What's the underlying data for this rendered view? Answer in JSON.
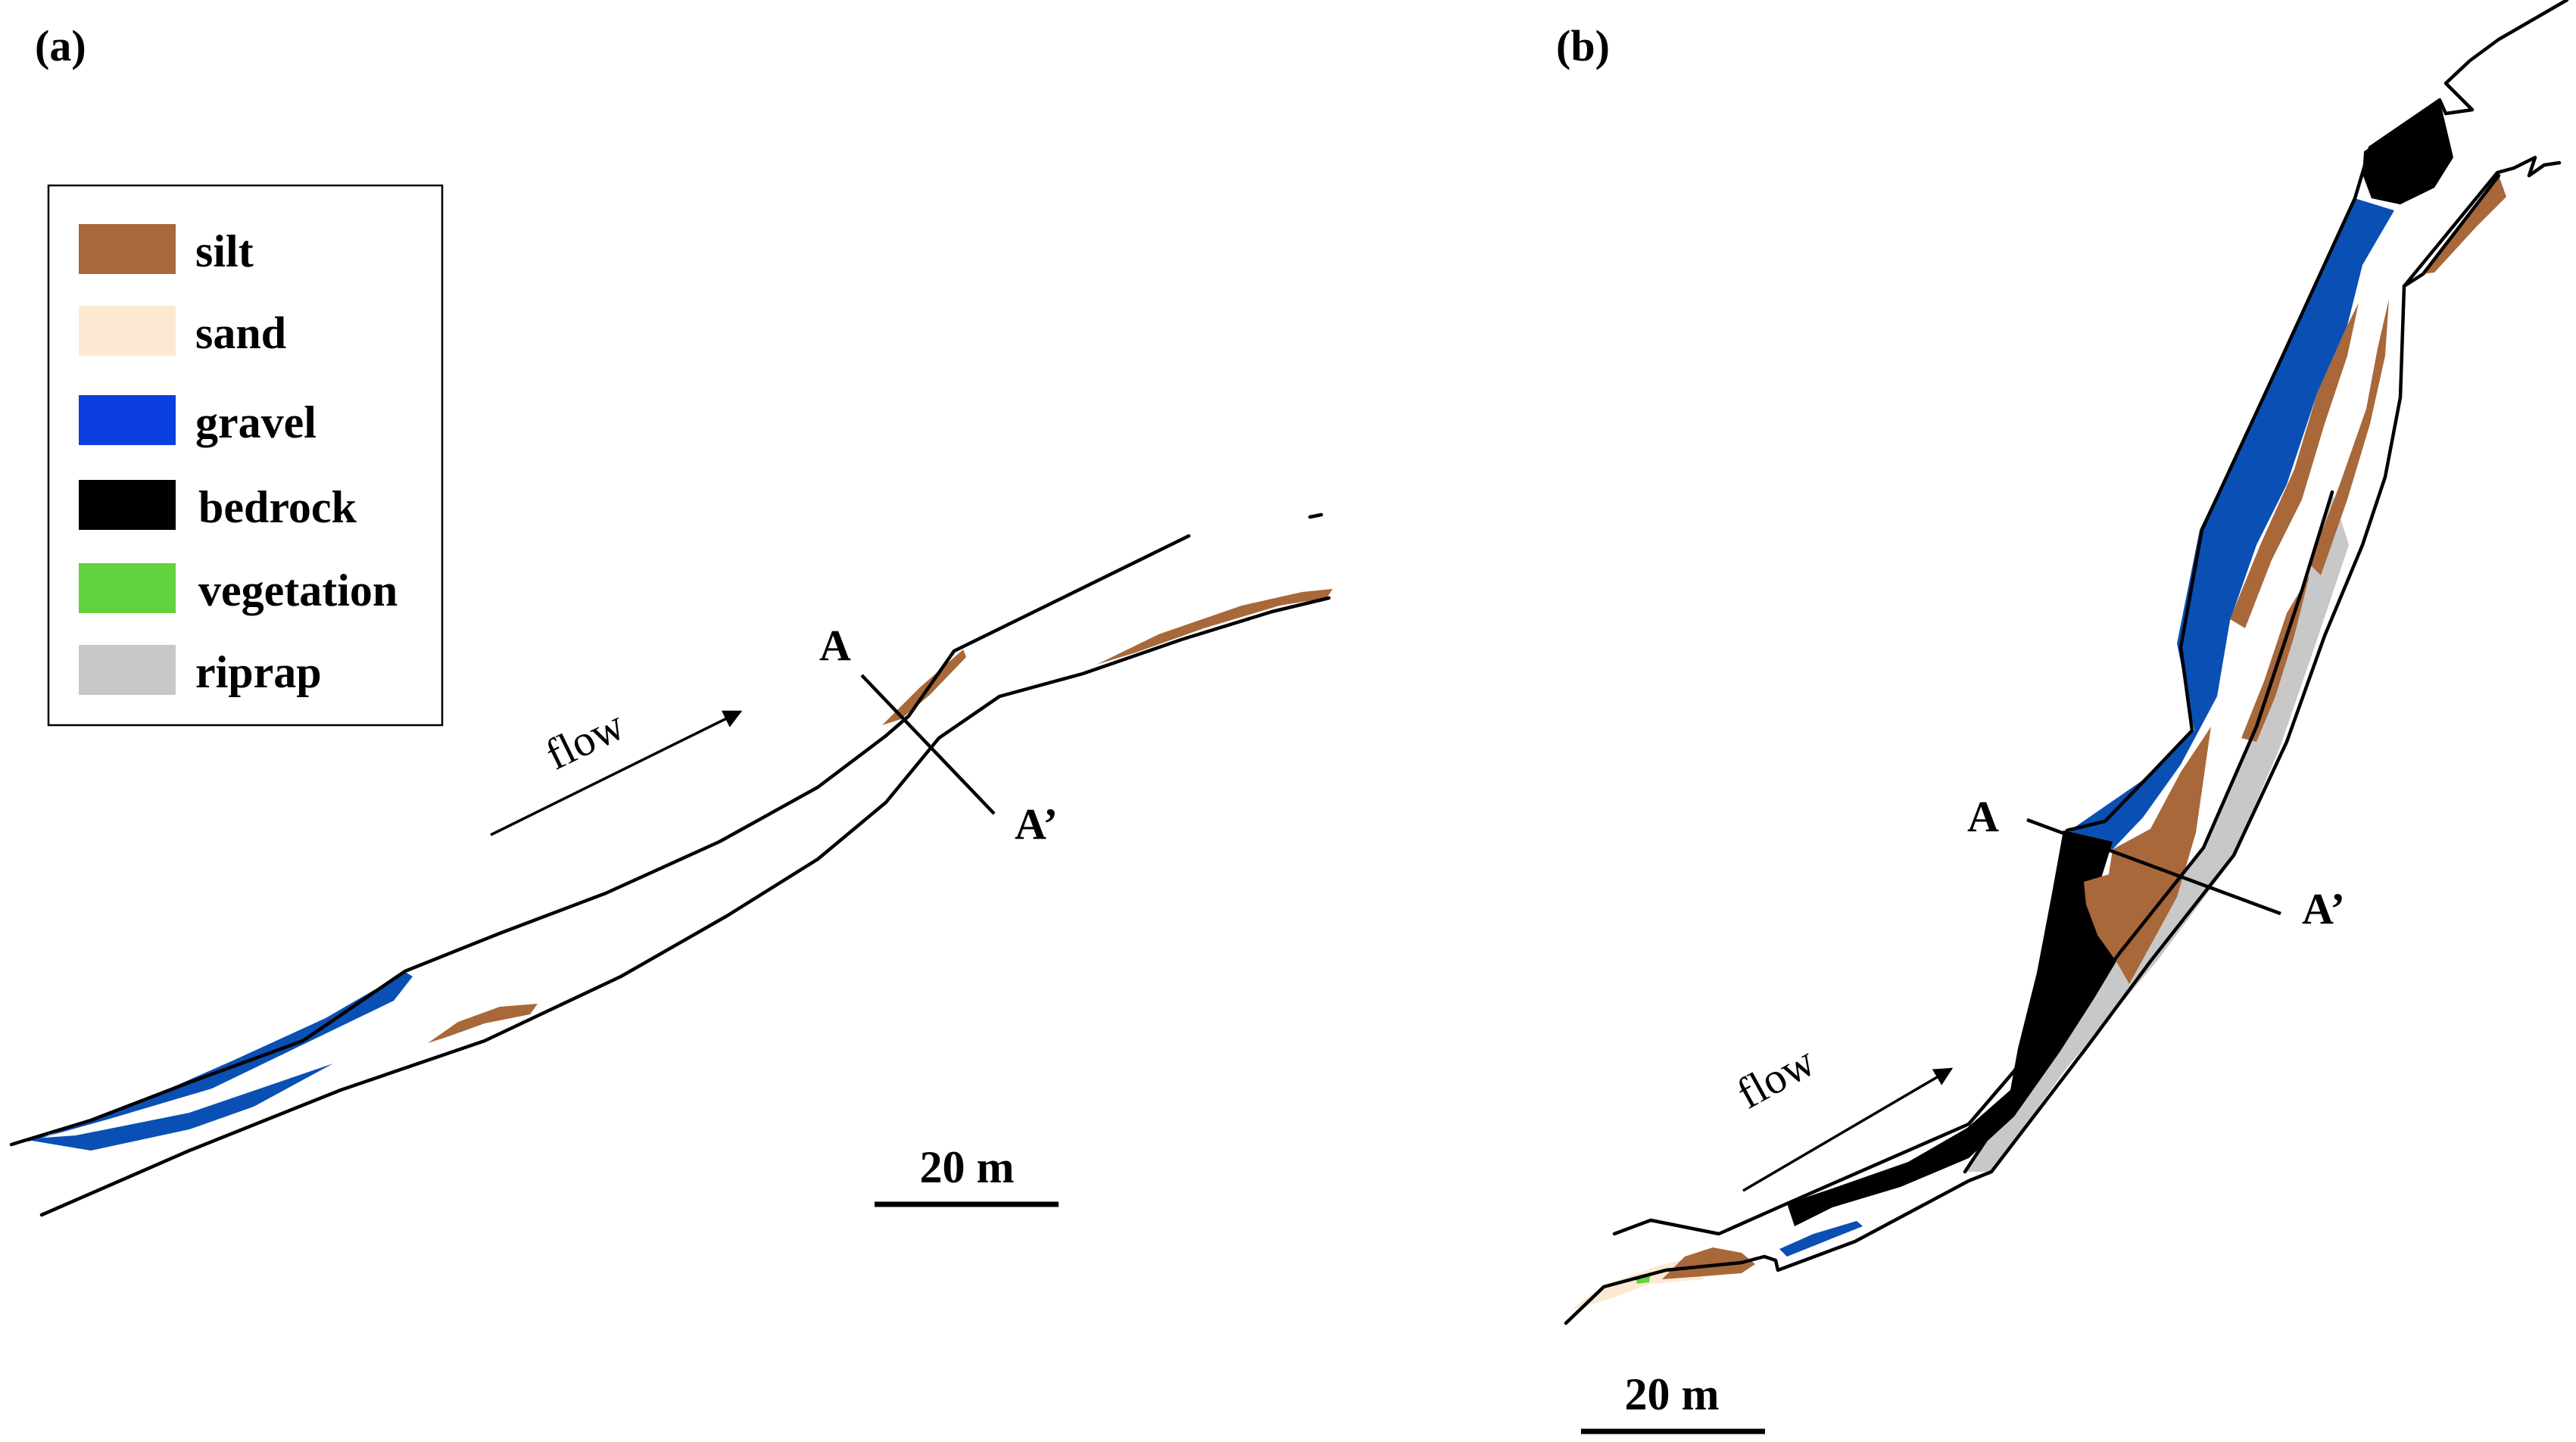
{
  "colors": {
    "silt": "#a8683a",
    "sand": "#fde9d2",
    "gravel": "#0b3fe0",
    "gravel_map": "#0a50b4",
    "bedrock": "#000000",
    "vegetation": "#63d23f",
    "riprap": "#c8c8c8",
    "lines": "#000000"
  },
  "panel_a": {
    "label": "(a)",
    "flow_label": "flow",
    "section_start": "A",
    "section_end": "A’",
    "scale_label": "20 m"
  },
  "panel_b": {
    "label": "(b)",
    "flow_label": "flow",
    "section_start": "A",
    "section_end": "A’",
    "scale_label": "20 m"
  },
  "legend": {
    "items": [
      {
        "key": "silt",
        "label": "silt"
      },
      {
        "key": "sand",
        "label": "sand"
      },
      {
        "key": "gravel",
        "label": "gravel"
      },
      {
        "key": "bedrock",
        "label": "bedrock"
      },
      {
        "key": "vegetation",
        "label": "vegetation"
      },
      {
        "key": "riprap",
        "label": "riprap"
      }
    ]
  }
}
